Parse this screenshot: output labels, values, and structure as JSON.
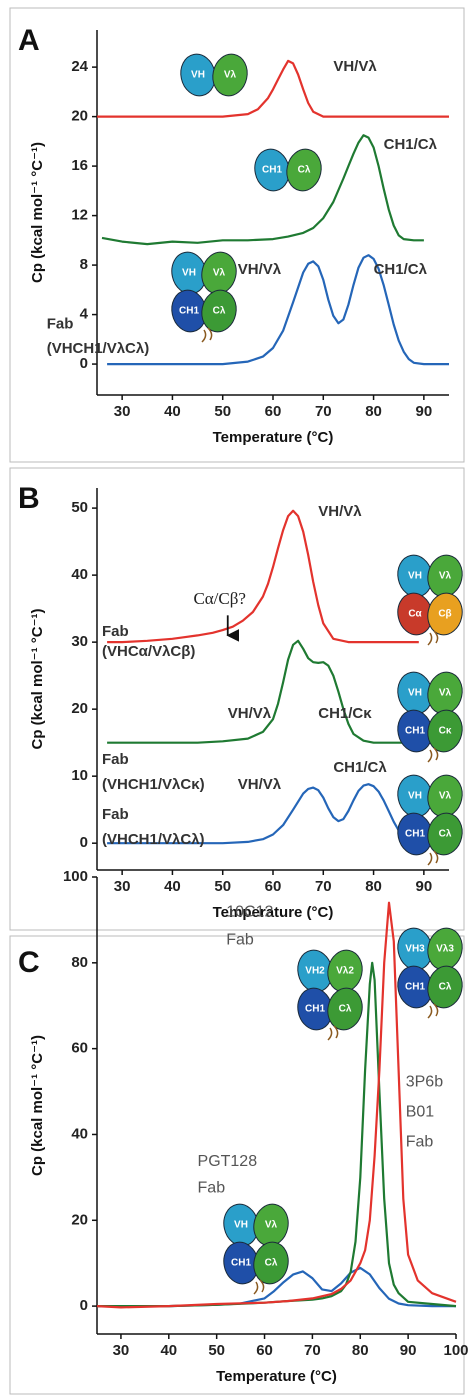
{
  "chart_data": [
    {
      "type": "line",
      "label": "A",
      "xlabel": "Temperature (°C)",
      "ylabel": "Cp (kcal mol⁻¹ °C⁻¹)",
      "xlim": [
        25,
        95
      ],
      "xticks": [
        30,
        40,
        50,
        60,
        70,
        80,
        90
      ],
      "ylim": [
        -2.5,
        27
      ],
      "yticks": [
        0,
        4,
        8,
        12,
        16,
        20,
        24
      ],
      "series": [
        {
          "color": "#e3332d",
          "x": [
            25,
            30,
            35,
            40,
            45,
            50,
            55,
            57,
            59,
            60,
            61,
            62,
            63,
            64,
            65,
            66,
            67,
            68,
            70,
            75,
            80,
            85,
            90,
            95
          ],
          "values": [
            20,
            20,
            20,
            20,
            20,
            20,
            20.2,
            20.6,
            21.5,
            22.2,
            23,
            23.8,
            24.5,
            24.3,
            23.4,
            22.2,
            21.1,
            20.4,
            20,
            20,
            20,
            20,
            20,
            20
          ]
        },
        {
          "color": "#1f7a32",
          "x": [
            26,
            30,
            35,
            40,
            45,
            50,
            55,
            60,
            63,
            66,
            68,
            70,
            72,
            74,
            75,
            76,
            77,
            78,
            79,
            80,
            81,
            82,
            83,
            84,
            85,
            86,
            88,
            90
          ],
          "values": [
            10.2,
            9.9,
            9.7,
            9.9,
            9.8,
            10,
            10,
            10.1,
            10.3,
            10.6,
            11,
            11.8,
            13.1,
            15,
            16,
            17,
            17.9,
            18.5,
            18.3,
            17.5,
            16,
            14.2,
            12.5,
            11.2,
            10.4,
            10.1,
            10,
            10
          ]
        },
        {
          "color": "#2566b8",
          "x": [
            27,
            30,
            35,
            40,
            45,
            50,
            55,
            58,
            60,
            62,
            64,
            66,
            67,
            68,
            69,
            70,
            71,
            72,
            73,
            74,
            75,
            76,
            77,
            78,
            79,
            80,
            81,
            82,
            83,
            84,
            85,
            86,
            87,
            88,
            90,
            95
          ],
          "values": [
            0,
            0,
            0,
            0,
            0,
            0,
            0.2,
            0.6,
            1.3,
            2.7,
            5,
            7.4,
            8.1,
            8.3,
            7.9,
            6.8,
            5.2,
            3.9,
            3.3,
            3.6,
            4.8,
            6.4,
            7.8,
            8.6,
            8.8,
            8.5,
            7.7,
            6.4,
            4.8,
            3.2,
            1.9,
            1,
            0.4,
            0.1,
            0,
            0
          ]
        }
      ],
      "annotations": [
        "VH/Vλ",
        "CH1/Cλ",
        "VH/Vλ",
        "CH1/Cλ",
        "Fab",
        "(VHCH1/VλCλ)"
      ],
      "icons": [
        [
          "VH",
          "Vλ"
        ],
        [
          "CH1",
          "Cλ"
        ],
        [
          "VH",
          "Vλ",
          "CH1",
          "Cλ"
        ]
      ]
    },
    {
      "type": "line",
      "label": "B",
      "xlabel": "Temperature (°C)",
      "ylabel": "Cp (kcal mol⁻¹ °C⁻¹)",
      "xlim": [
        25,
        95
      ],
      "xticks": [
        30,
        40,
        50,
        60,
        70,
        80,
        90
      ],
      "ylim": [
        -4,
        53
      ],
      "yticks": [
        0,
        10,
        20,
        30,
        40,
        50
      ],
      "series": [
        {
          "color": "#e3332d",
          "x": [
            27,
            30,
            35,
            40,
            45,
            48,
            50,
            52,
            54,
            56,
            58,
            59,
            60,
            61,
            62,
            63,
            64,
            65,
            66,
            67,
            68,
            69,
            70,
            72,
            75,
            80,
            85,
            89
          ],
          "values": [
            30,
            30,
            30.2,
            30.5,
            31,
            31.4,
            31.8,
            32.3,
            33.2,
            34.5,
            36.8,
            38.7,
            41.2,
            44,
            46.7,
            48.8,
            49.6,
            48.8,
            46.5,
            43,
            39,
            35.5,
            32.8,
            30.5,
            30,
            30,
            30,
            30
          ]
        },
        {
          "color": "#1f7a32",
          "x": [
            27,
            30,
            35,
            40,
            45,
            50,
            55,
            58,
            60,
            61,
            62,
            63,
            64,
            65,
            66,
            67,
            68,
            69,
            70,
            71,
            72,
            73,
            74,
            75,
            76,
            78,
            80,
            85,
            90,
            95
          ],
          "values": [
            15,
            15,
            15,
            15,
            15,
            15.2,
            15.6,
            16.6,
            18.5,
            20.8,
            24,
            27.4,
            29.6,
            30.2,
            29,
            27.6,
            27,
            26.9,
            27,
            26.5,
            25,
            22.6,
            20,
            17.8,
            16.3,
            15.3,
            15,
            15,
            15,
            15
          ]
        },
        {
          "color": "#2566b8",
          "x": [
            27,
            30,
            35,
            40,
            45,
            50,
            55,
            58,
            60,
            62,
            64,
            66,
            67,
            68,
            69,
            70,
            71,
            72,
            73,
            74,
            75,
            76,
            77,
            78,
            79,
            80,
            81,
            82,
            83,
            84,
            85,
            86,
            87,
            88,
            90,
            95
          ],
          "values": [
            0,
            0,
            0,
            0,
            0,
            0,
            0.2,
            0.6,
            1.3,
            2.7,
            5,
            7.4,
            8.1,
            8.3,
            7.9,
            6.8,
            5.2,
            3.9,
            3.3,
            3.6,
            4.8,
            6.4,
            7.8,
            8.6,
            8.8,
            8.5,
            7.7,
            6.4,
            4.8,
            3.2,
            1.9,
            1,
            0.4,
            0.1,
            0,
            0
          ]
        }
      ],
      "annotations": [
        "VH/Vλ",
        "Cα/Cβ?",
        "Fab",
        "(VHCα/VλCβ)",
        "VH/Vλ",
        "CH1/Cκ",
        "Fab",
        "(VHCH1/VλCκ)",
        "VH/Vλ",
        "CH1/Cλ",
        "Fab",
        "(VHCH1/VλCλ)"
      ],
      "icons": [
        [
          "VH",
          "Vλ",
          "Cα",
          "Cβ"
        ],
        [
          "VH",
          "Vλ",
          "CH1",
          "Cκ"
        ],
        [
          "VH",
          "Vλ",
          "CH1",
          "Cλ"
        ]
      ]
    },
    {
      "type": "line",
      "label": "C",
      "xlabel": "Temperature (°C)",
      "ylabel": "Cp (kcal mol⁻¹ °C⁻¹)",
      "xlim": [
        25,
        100
      ],
      "xticks": [
        30,
        40,
        50,
        60,
        70,
        80,
        90,
        100
      ],
      "ylim": [
        -6.5,
        100
      ],
      "yticks": [
        0,
        20,
        40,
        60,
        80,
        100
      ],
      "series": [
        {
          "color": "#2566b8",
          "x": [
            25,
            30,
            40,
            50,
            55,
            60,
            62,
            64,
            66,
            68,
            70,
            72,
            74,
            76,
            78,
            80,
            82,
            84,
            86,
            88,
            90,
            95,
            100
          ],
          "values": [
            0,
            0,
            0,
            0.3,
            0.6,
            1.8,
            3.5,
            5.6,
            7.4,
            8.1,
            6.5,
            3.9,
            3.5,
            5.3,
            7.8,
            8.9,
            7.4,
            4.2,
            1.7,
            0.6,
            0.2,
            0,
            0
          ]
        },
        {
          "color": "#1f7a32",
          "x": [
            25,
            40,
            50,
            60,
            65,
            70,
            72,
            74,
            76,
            77,
            78,
            79,
            80,
            81,
            82,
            82.5,
            83,
            84,
            85,
            86,
            87,
            88,
            90,
            95,
            100
          ],
          "values": [
            0,
            0,
            0.3,
            0.8,
            1.2,
            1.5,
            1.8,
            2.3,
            3.5,
            5,
            8,
            15,
            30,
            55,
            75,
            80,
            76,
            50,
            25,
            10,
            5,
            3,
            1,
            0.5,
            0
          ]
        },
        {
          "color": "#e3332d",
          "x": [
            25,
            30,
            40,
            50,
            60,
            65,
            70,
            74,
            76,
            78,
            79,
            80,
            81,
            82,
            83,
            84,
            85,
            86,
            87,
            88,
            89,
            90,
            92,
            95,
            100
          ],
          "values": [
            0,
            -0.3,
            0,
            0.5,
            0.8,
            1.2,
            1.8,
            2.8,
            4,
            6,
            8,
            10,
            13,
            20,
            35,
            55,
            80,
            94,
            85,
            55,
            25,
            12,
            6,
            3,
            1
          ]
        }
      ],
      "annotations": [
        "10C12",
        "Fab",
        "3P6b",
        "B01",
        "Fab",
        "PGT128",
        "Fab"
      ],
      "icons": [
        [
          "VH2",
          "Vλ2",
          "CH1",
          "Cλ"
        ],
        [
          "VH3",
          "Vλ3",
          "CH1",
          "Cλ"
        ],
        [
          "VH",
          "Vλ",
          "CH1",
          "Cλ"
        ]
      ]
    }
  ]
}
